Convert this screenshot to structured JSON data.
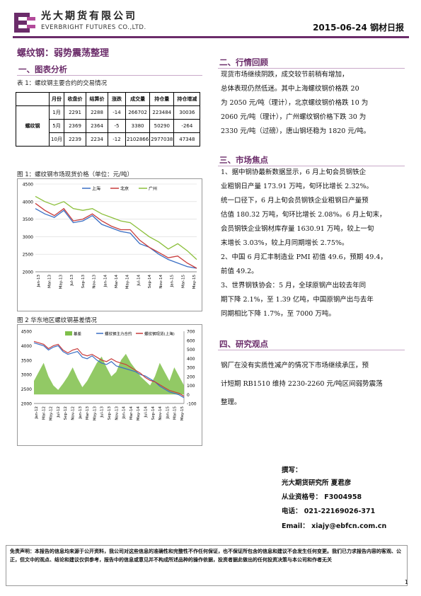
{
  "header": {
    "company_cn": "光大期货有限公司",
    "company_en": "EVERBRIGHT FUTURES CO.,LTD.",
    "date_and_type": "2015-06-24  钢材日报"
  },
  "main_title": "螺纹钢：弱势震荡整理",
  "section1": {
    "title": "一、图表分析",
    "table_caption": "表 1：螺纹钢主要合约的交易情况",
    "table": {
      "headers": [
        "",
        "月份",
        "收盘价",
        "结算价",
        "涨跌",
        "成交量",
        "持仓量",
        "持仓增减"
      ],
      "group_label": "螺纹钢",
      "rows": [
        [
          "1月",
          "2291",
          "2288",
          "-14",
          "266702",
          "223484",
          "30036"
        ],
        [
          "5月",
          "2369",
          "2364",
          "-5",
          "3380",
          "50290",
          "-264"
        ],
        [
          "10月",
          "2239",
          "2234",
          "-12",
          "2102866",
          "2977038",
          "47348"
        ]
      ]
    },
    "fig1_caption": "图 1：螺纹钢市场现货价格（单位：元/吨）",
    "fig2_caption": "图 2  华东地区螺纹钢基差情况"
  },
  "chart_data": [
    {
      "type": "line",
      "title": "",
      "series": [
        {
          "name": "上海",
          "color": "#3a6fc4",
          "values": [
            3800,
            3650,
            3550,
            3750,
            3400,
            3450,
            3600,
            3350,
            3250,
            3150,
            3100,
            2800,
            2700,
            2500,
            2350,
            2250,
            2150,
            2100
          ]
        },
        {
          "name": "北京",
          "color": "#c83c3c",
          "values": [
            3950,
            3750,
            3600,
            3800,
            3450,
            3500,
            3650,
            3450,
            3300,
            3200,
            3200,
            2900,
            2700,
            2550,
            2400,
            2450,
            2250,
            2100
          ]
        },
        {
          "name": "广州",
          "color": "#8bbf3a",
          "values": [
            4150,
            4000,
            3900,
            4000,
            3800,
            3750,
            3800,
            3650,
            3550,
            3450,
            3400,
            3200,
            3000,
            2850,
            2650,
            2800,
            2600,
            2350
          ]
        }
      ],
      "x_ticks": [
        "Jan-13",
        "Mar-13",
        "May-13",
        "Jul-13",
        "Sep-13",
        "Nov-13",
        "Jan-14",
        "Mar-14",
        "May-14",
        "Jul-14",
        "Sep-14",
        "Nov-14",
        "Jan-15",
        "Mar-15",
        "May-15"
      ],
      "y_ticks": [
        "4500",
        "4000",
        "3500",
        "3000",
        "2500",
        "2000"
      ],
      "ylim": [
        2000,
        4500
      ],
      "grid": true,
      "legend": "top"
    },
    {
      "type": "line",
      "title": "",
      "series": [
        {
          "name": "基差",
          "color": "#7fbf4a",
          "kind": "area",
          "axis": "right",
          "values": [
            150,
            250,
            350,
            200,
            100,
            50,
            120,
            200,
            300,
            180,
            80,
            150,
            250,
            350,
            420,
            300,
            200,
            250,
            380,
            450,
            350,
            280,
            200,
            150,
            100,
            200,
            350,
            250,
            150,
            300,
            200,
            100
          ]
        },
        {
          "name": "螺纹钢主力合约",
          "color": "#3a6fc4",
          "axis": "left",
          "values": [
            4100,
            4050,
            4000,
            3850,
            3950,
            4000,
            3800,
            3700,
            3750,
            3800,
            3600,
            3550,
            3650,
            3500,
            3400,
            3350,
            3450,
            3300,
            3250,
            3200,
            3150,
            3100,
            3000,
            2950,
            2850,
            2750,
            2600,
            2500,
            2400,
            2350,
            2300,
            2200
          ]
        },
        {
          "name": "螺纹钢现货(上海)",
          "color": "#c83c3c",
          "axis": "left",
          "values": [
            4150,
            4100,
            4050,
            3900,
            4000,
            4050,
            3850,
            3750,
            3850,
            3900,
            3700,
            3650,
            3700,
            3600,
            3500,
            3450,
            3550,
            3450,
            3400,
            3350,
            3250,
            3150,
            3050,
            2900,
            2800,
            2750,
            2650,
            2550,
            2450,
            2400,
            2350,
            2250
          ]
        }
      ],
      "x_ticks": [
        "Jan-12",
        "Mar-12",
        "May-12",
        "Jul-12",
        "Sep-12",
        "Nov-12",
        "Jan-13",
        "Mar-13",
        "May-13",
        "Jul-13",
        "Sep-13",
        "Nov-13",
        "Jan-14",
        "Mar-14",
        "May-14",
        "Jul-14",
        "Sep-14",
        "Nov-14",
        "Jan-15",
        "Mar-15",
        "May-15"
      ],
      "y_left_ticks": [
        "4500",
        "4000",
        "3500",
        "3000",
        "2500",
        "2000"
      ],
      "y_right_ticks": [
        "700",
        "600",
        "500",
        "400",
        "300",
        "200",
        "100",
        "0",
        "-100"
      ],
      "ylim_left": [
        2000,
        4500
      ],
      "ylim_right": [
        -100,
        700
      ],
      "legend": "top"
    }
  ],
  "section2": {
    "title": "二、行情回顾",
    "lines": [
      "现货市场继续阴跌，成交较节前稍有增加，",
      "总体表现仍然低迷。其中上海螺纹钢价格跌 20",
      "为 2050 元/吨（理计），北京螺纹钢价格跌 10 为",
      "2060 元/吨（理计），广州螺纹钢价格下跌 30 为",
      "2330 元/吨（过磅），唐山钢坯稳为 1820 元/吨。"
    ]
  },
  "section3": {
    "title": "三、市场焦点",
    "lines": [
      "1、据中钢协最新数据显示，6 月上旬会员钢铁企",
      "业粗钢日产量 173.91 万吨，旬环比增长 2.32%。",
      "统一口径下，6 月上旬会员钢铁企业粗钢日产量预",
      "估值 180.32 万吨，旬环比增长 2.08%。6 月上旬末，",
      "会员钢铁企业钢材库存量 1630.91 万吨，较上一旬",
      "末增长 3.03%，较上月同期增长 2.75%。",
      "2、中国 6 月汇丰制造业 PMI 初值 49.6，预期 49.4，",
      "前值 49.2。",
      "3、世界钢铁协会：5 月，全球原钢产出较去年同",
      "期下降 2.1%，至 1.39 亿吨，中国原钢产出与去年",
      "同期相比下降 1.7%，至 7000 万吨。"
    ]
  },
  "section4": {
    "title": "四、研究观点",
    "lines": [
      "钢厂在没有实质性减产的情况下市场继续承压，预",
      "计短期 RB1510 维持 2230-2260 元/吨区间弱势震荡",
      "整理。"
    ]
  },
  "author": {
    "label": "撰写：",
    "name": "光大期货研究所  夏君彦",
    "cert": "从业资格号：  F3004958",
    "phone": "电话：  021-22169026-371",
    "email": "Email：  xiajy@ebfcn.com.cn"
  },
  "disclaimer": "免责声明：本报告的信息均来源于公开资料，我公司对这些信息的准确性和完整性不作任何保证，也不保证所包含的信息和建议不会发生任何变更。我们已力求报告内容的客观、公正，但文中的观点、结论和建议仅供参考，报告中的信息或意见并不构成所述品种的操作依据，投资者据此做出的任何投资决策与本公司和作者无关",
  "page_number": "1"
}
